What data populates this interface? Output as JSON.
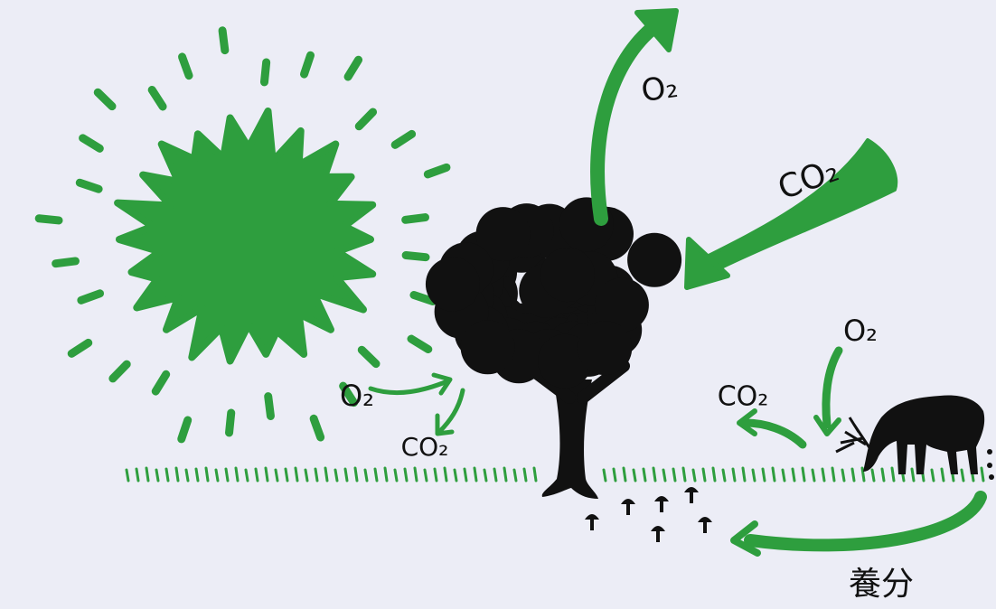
{
  "labels": {
    "tree_o2_out": "O₂",
    "tree_co2_in": "CO₂",
    "air_o2_in": "O₂",
    "air_co2_out": "CO₂",
    "deer_o2_in": "O₂",
    "deer_co2_out": "CO₂",
    "nutrients": "養分"
  }
}
